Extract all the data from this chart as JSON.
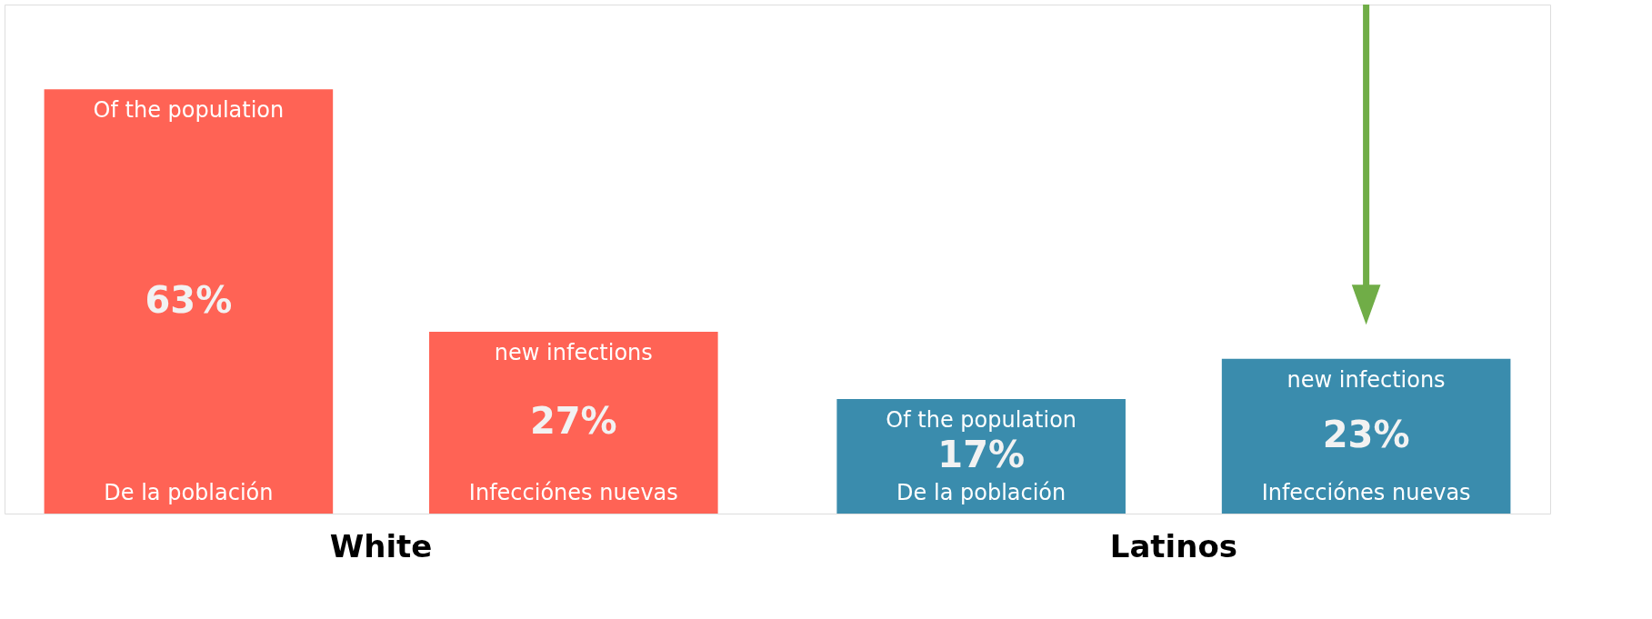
{
  "chart_data": {
    "type": "bar",
    "categories": [
      "White",
      "Latinos"
    ],
    "series": [
      {
        "name": "Of the population",
        "colors": [
          "#ff6355",
          "#3a8cad"
        ],
        "values": [
          63,
          17
        ],
        "value_labels": [
          "63%",
          "17%"
        ]
      },
      {
        "name": "new infections",
        "colors": [
          "#ff6355",
          "#3a8cad"
        ],
        "values": [
          27,
          23
        ],
        "value_labels": [
          "27%",
          "23%"
        ]
      }
    ],
    "annotations": [
      "De la población",
      "Infecciónes nuevas"
    ]
  }
}
